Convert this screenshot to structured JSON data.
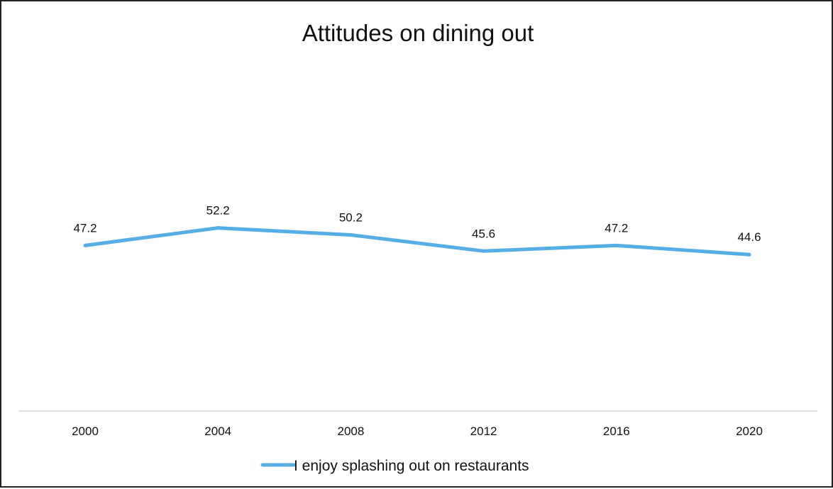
{
  "chart_data": {
    "type": "line",
    "title": "Attitudes on dining out",
    "xlabel": "",
    "ylabel": "",
    "categories": [
      "2000",
      "2004",
      "2008",
      "2012",
      "2016",
      "2020"
    ],
    "series": [
      {
        "name": "I enjoy splashing out on restaurants",
        "values": [
          47.2,
          52.2,
          50.2,
          45.6,
          47.2,
          44.6
        ],
        "labels": [
          "47.2",
          "52.2",
          "50.2",
          "45.6",
          "47.2",
          "44.6"
        ],
        "color": "#56AEE6"
      }
    ],
    "ylim": [
      0,
      120
    ],
    "grid": false,
    "y_axis_visible": false,
    "data_labels": true,
    "legend": "bottom",
    "axis_color": "#D9D9D9"
  }
}
